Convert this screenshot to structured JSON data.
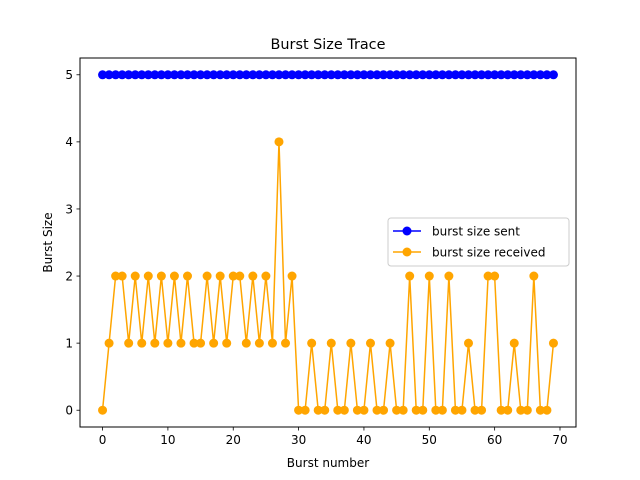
{
  "chart_data": {
    "type": "line",
    "title": "Burst Size Trace",
    "xlabel": "Burst number",
    "ylabel": "Burst Size",
    "xlim": [
      -3.45,
      72.45
    ],
    "ylim": [
      -0.25,
      5.25
    ],
    "xticks": [
      0,
      10,
      20,
      30,
      40,
      50,
      60,
      70
    ],
    "yticks": [
      0,
      1,
      2,
      3,
      4,
      5
    ],
    "grid": false,
    "legend_position": "center-right",
    "x": [
      0,
      1,
      2,
      3,
      4,
      5,
      6,
      7,
      8,
      9,
      10,
      11,
      12,
      13,
      14,
      15,
      16,
      17,
      18,
      19,
      20,
      21,
      22,
      23,
      24,
      25,
      26,
      27,
      28,
      29,
      30,
      31,
      32,
      33,
      34,
      35,
      36,
      37,
      38,
      39,
      40,
      41,
      42,
      43,
      44,
      45,
      46,
      47,
      48,
      49,
      50,
      51,
      52,
      53,
      54,
      55,
      56,
      57,
      58,
      59,
      60,
      61,
      62,
      63,
      64,
      65,
      66,
      67,
      68,
      69
    ],
    "series": [
      {
        "name": "burst size sent",
        "color": "#0000ff",
        "values": [
          5,
          5,
          5,
          5,
          5,
          5,
          5,
          5,
          5,
          5,
          5,
          5,
          5,
          5,
          5,
          5,
          5,
          5,
          5,
          5,
          5,
          5,
          5,
          5,
          5,
          5,
          5,
          5,
          5,
          5,
          5,
          5,
          5,
          5,
          5,
          5,
          5,
          5,
          5,
          5,
          5,
          5,
          5,
          5,
          5,
          5,
          5,
          5,
          5,
          5,
          5,
          5,
          5,
          5,
          5,
          5,
          5,
          5,
          5,
          5,
          5,
          5,
          5,
          5,
          5,
          5,
          5,
          5,
          5,
          5
        ]
      },
      {
        "name": "burst size received",
        "color": "#ffa500",
        "values": [
          0,
          1,
          2,
          2,
          1,
          2,
          1,
          2,
          1,
          2,
          1,
          2,
          1,
          2,
          1,
          1,
          2,
          1,
          2,
          1,
          2,
          2,
          1,
          2,
          1,
          2,
          1,
          4,
          1,
          2,
          0,
          0,
          1,
          0,
          0,
          1,
          0,
          0,
          1,
          0,
          0,
          1,
          0,
          0,
          1,
          0,
          0,
          2,
          0,
          0,
          2,
          0,
          0,
          2,
          0,
          0,
          1,
          0,
          0,
          2,
          2,
          0,
          0,
          1,
          0,
          0,
          2,
          0,
          0,
          1
        ]
      }
    ]
  }
}
